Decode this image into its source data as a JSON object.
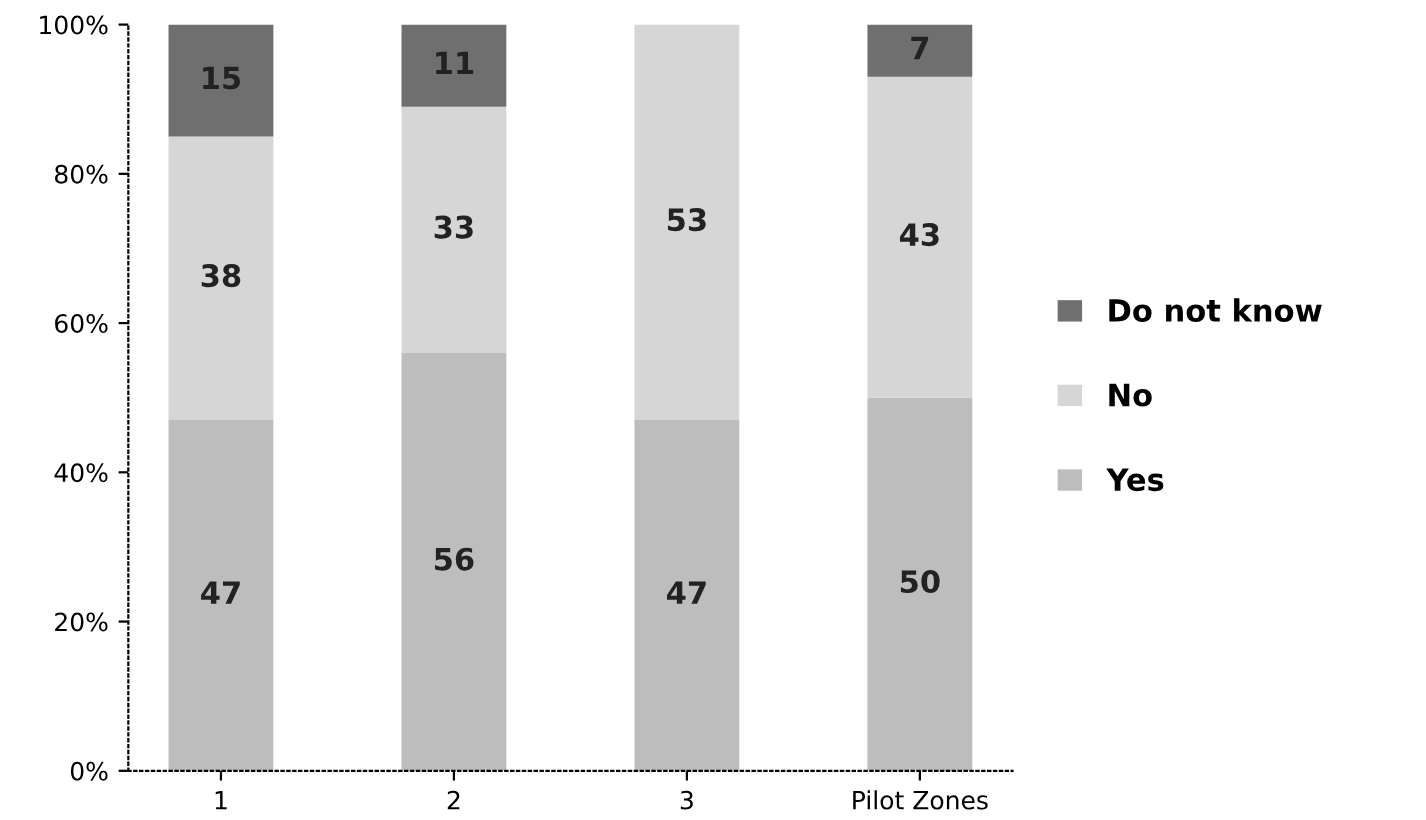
{
  "chart_data": {
    "type": "bar",
    "stacked": true,
    "categories": [
      "1",
      "2",
      "3",
      "Pilot Zones"
    ],
    "series": [
      {
        "name": "Yes",
        "color": "#bdbdbd",
        "values": [
          47,
          56,
          47,
          50
        ],
        "value_labels": [
          "47",
          "56",
          "47",
          "50"
        ]
      },
      {
        "name": "No",
        "color": "#d6d6d6",
        "values": [
          38,
          33,
          53,
          43
        ],
        "value_labels": [
          "38",
          "33",
          "53",
          "43"
        ]
      },
      {
        "name": "Do not know",
        "color": "#6f6f6f",
        "values": [
          15,
          11,
          0,
          7
        ],
        "value_labels": [
          "15",
          "11",
          null,
          "7"
        ]
      }
    ],
    "ylim": [
      0,
      100
    ],
    "yticks": [
      {
        "value": 0,
        "label": "0%"
      },
      {
        "value": 20,
        "label": "20%"
      },
      {
        "value": 40,
        "label": "40%"
      },
      {
        "value": 60,
        "label": "60%"
      },
      {
        "value": 80,
        "label": "80%"
      },
      {
        "value": 100,
        "label": "100%"
      }
    ],
    "grid": false,
    "legend": "right"
  }
}
